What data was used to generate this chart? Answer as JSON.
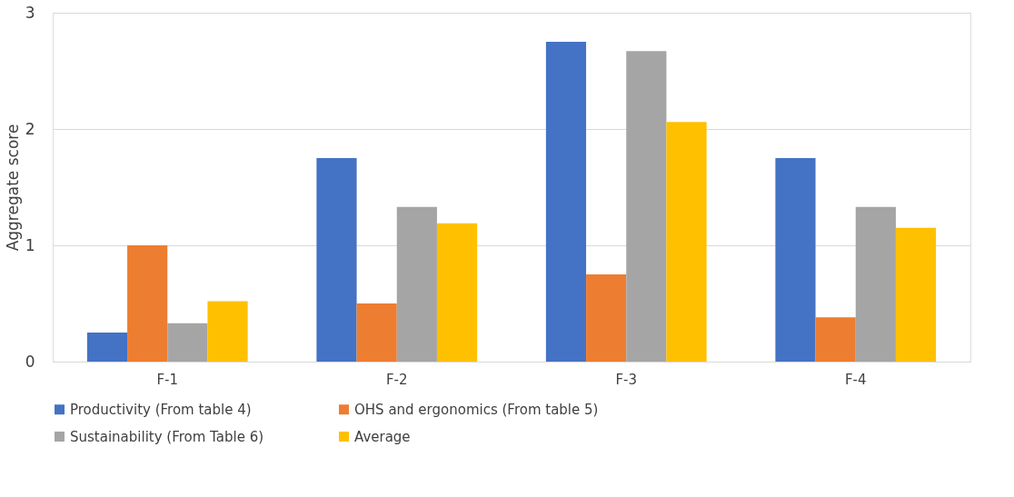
{
  "chart_data": {
    "type": "bar",
    "ylabel": "Aggregate score",
    "categories": [
      "F-1",
      "F-2",
      "F-3",
      "F-4"
    ],
    "series": [
      {
        "name": "Productivity (From table 4)",
        "color": "#4472c4",
        "values": [
          0.25,
          1.75,
          2.75,
          1.75
        ]
      },
      {
        "name": "OHS and ergonomics (From table 5)",
        "color": "#ed7d31",
        "values": [
          1.0,
          0.5,
          0.75,
          0.38
        ]
      },
      {
        "name": "Sustainability (From Table 6)",
        "color": "#a5a5a5",
        "values": [
          0.33,
          1.33,
          2.67,
          1.33
        ]
      },
      {
        "name": "Average",
        "color": "#ffc000",
        "values": [
          0.52,
          1.19,
          2.06,
          1.15
        ]
      }
    ],
    "ylim": [
      0,
      3
    ],
    "yticks": [
      0,
      1,
      2,
      3
    ],
    "grid": "y",
    "legend": "bottom"
  }
}
